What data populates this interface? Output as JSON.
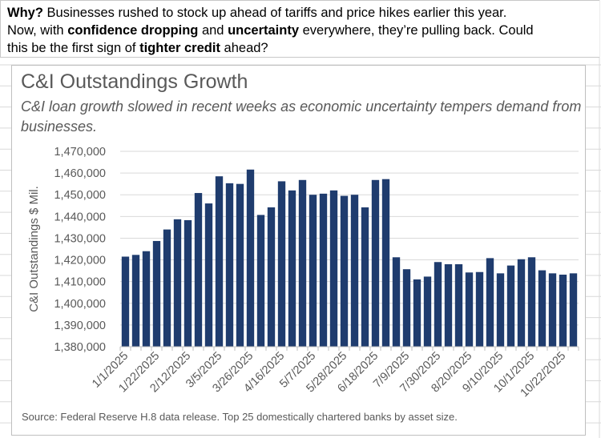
{
  "header": {
    "line1": [
      {
        "text": "Why?",
        "bold": true
      },
      {
        "text": "  Businesses rushed to stock up ahead of tariffs and price hikes earlier this year.",
        "bold": false
      }
    ],
    "line2": [
      {
        "text": "Now, with ",
        "bold": false
      },
      {
        "text": "confidence dropping",
        "bold": true
      },
      {
        "text": " and ",
        "bold": false
      },
      {
        "text": "uncertainty",
        "bold": true
      },
      {
        "text": " everywhere, they’re pulling back.  Could",
        "bold": false
      }
    ],
    "line3": [
      {
        "text": "this be the first sign of ",
        "bold": false
      },
      {
        "text": "tighter credit",
        "bold": true
      },
      {
        "text": " ahead?",
        "bold": false
      }
    ]
  },
  "chart_data": {
    "type": "bar",
    "title": "C&I Outstandings Growth",
    "subtitle": "C&I loan growth slowed in recent weeks as economic uncertainty tempers demand from businesses.",
    "ylabel": "C&I Outstandings $ Mil.",
    "xlabel": "",
    "ylim": [
      1380000,
      1470000
    ],
    "yticks": [
      1380000,
      1390000,
      1400000,
      1410000,
      1420000,
      1430000,
      1440000,
      1450000,
      1460000,
      1470000
    ],
    "ytick_labels": [
      "1,380,000",
      "1,390,000",
      "1,400,000",
      "1,410,000",
      "1,420,000",
      "1,430,000",
      "1,440,000",
      "1,450,000",
      "1,460,000",
      "1,470,000"
    ],
    "grid": true,
    "bar_color": "#1f3c6e",
    "categories": [
      "1/1/2025",
      "1/8/2025",
      "1/15/2025",
      "1/22/2025",
      "1/29/2025",
      "2/5/2025",
      "2/12/2025",
      "2/19/2025",
      "2/26/2025",
      "3/5/2025",
      "3/12/2025",
      "3/19/2025",
      "3/26/2025",
      "4/2/2025",
      "4/9/2025",
      "4/16/2025",
      "4/23/2025",
      "4/30/2025",
      "5/7/2025",
      "5/14/2025",
      "5/21/2025",
      "5/28/2025",
      "6/4/2025",
      "6/11/2025",
      "6/18/2025",
      "6/25/2025",
      "7/2/2025",
      "7/9/2025",
      "7/16/2025",
      "7/23/2025",
      "7/30/2025",
      "8/6/2025",
      "8/13/2025",
      "8/20/2025",
      "8/27/2025",
      "9/3/2025",
      "9/10/2025",
      "9/17/2025",
      "9/24/2025",
      "10/1/2025",
      "10/8/2025",
      "10/15/2025",
      "10/22/2025",
      "10/29/2025"
    ],
    "values": [
      1421500,
      1422300,
      1424000,
      1428700,
      1434000,
      1438700,
      1438300,
      1450800,
      1446000,
      1458500,
      1455300,
      1455000,
      1461600,
      1440700,
      1444200,
      1456200,
      1452000,
      1456800,
      1450000,
      1450500,
      1452000,
      1449500,
      1450000,
      1444200,
      1456800,
      1457200,
      1421200,
      1415700,
      1411000,
      1412300,
      1419000,
      1418000,
      1418000,
      1414200,
      1414400,
      1420800,
      1413800,
      1417400,
      1420300,
      1421200,
      1415200,
      1413800,
      1413200,
      1413800
    ],
    "xtick_labels": [
      "1/1/2025",
      "1/22/2025",
      "2/12/2025",
      "3/5/2025",
      "3/26/2025",
      "4/16/2025",
      "5/7/2025",
      "5/28/2025",
      "6/18/2025",
      "7/9/2025",
      "7/30/2025",
      "8/20/2025",
      "9/10/2025",
      "10/1/2025",
      "10/22/2025"
    ],
    "source": "Source: Federal Reserve H.8 data release. Top 25 domestically chartered banks by asset size."
  }
}
